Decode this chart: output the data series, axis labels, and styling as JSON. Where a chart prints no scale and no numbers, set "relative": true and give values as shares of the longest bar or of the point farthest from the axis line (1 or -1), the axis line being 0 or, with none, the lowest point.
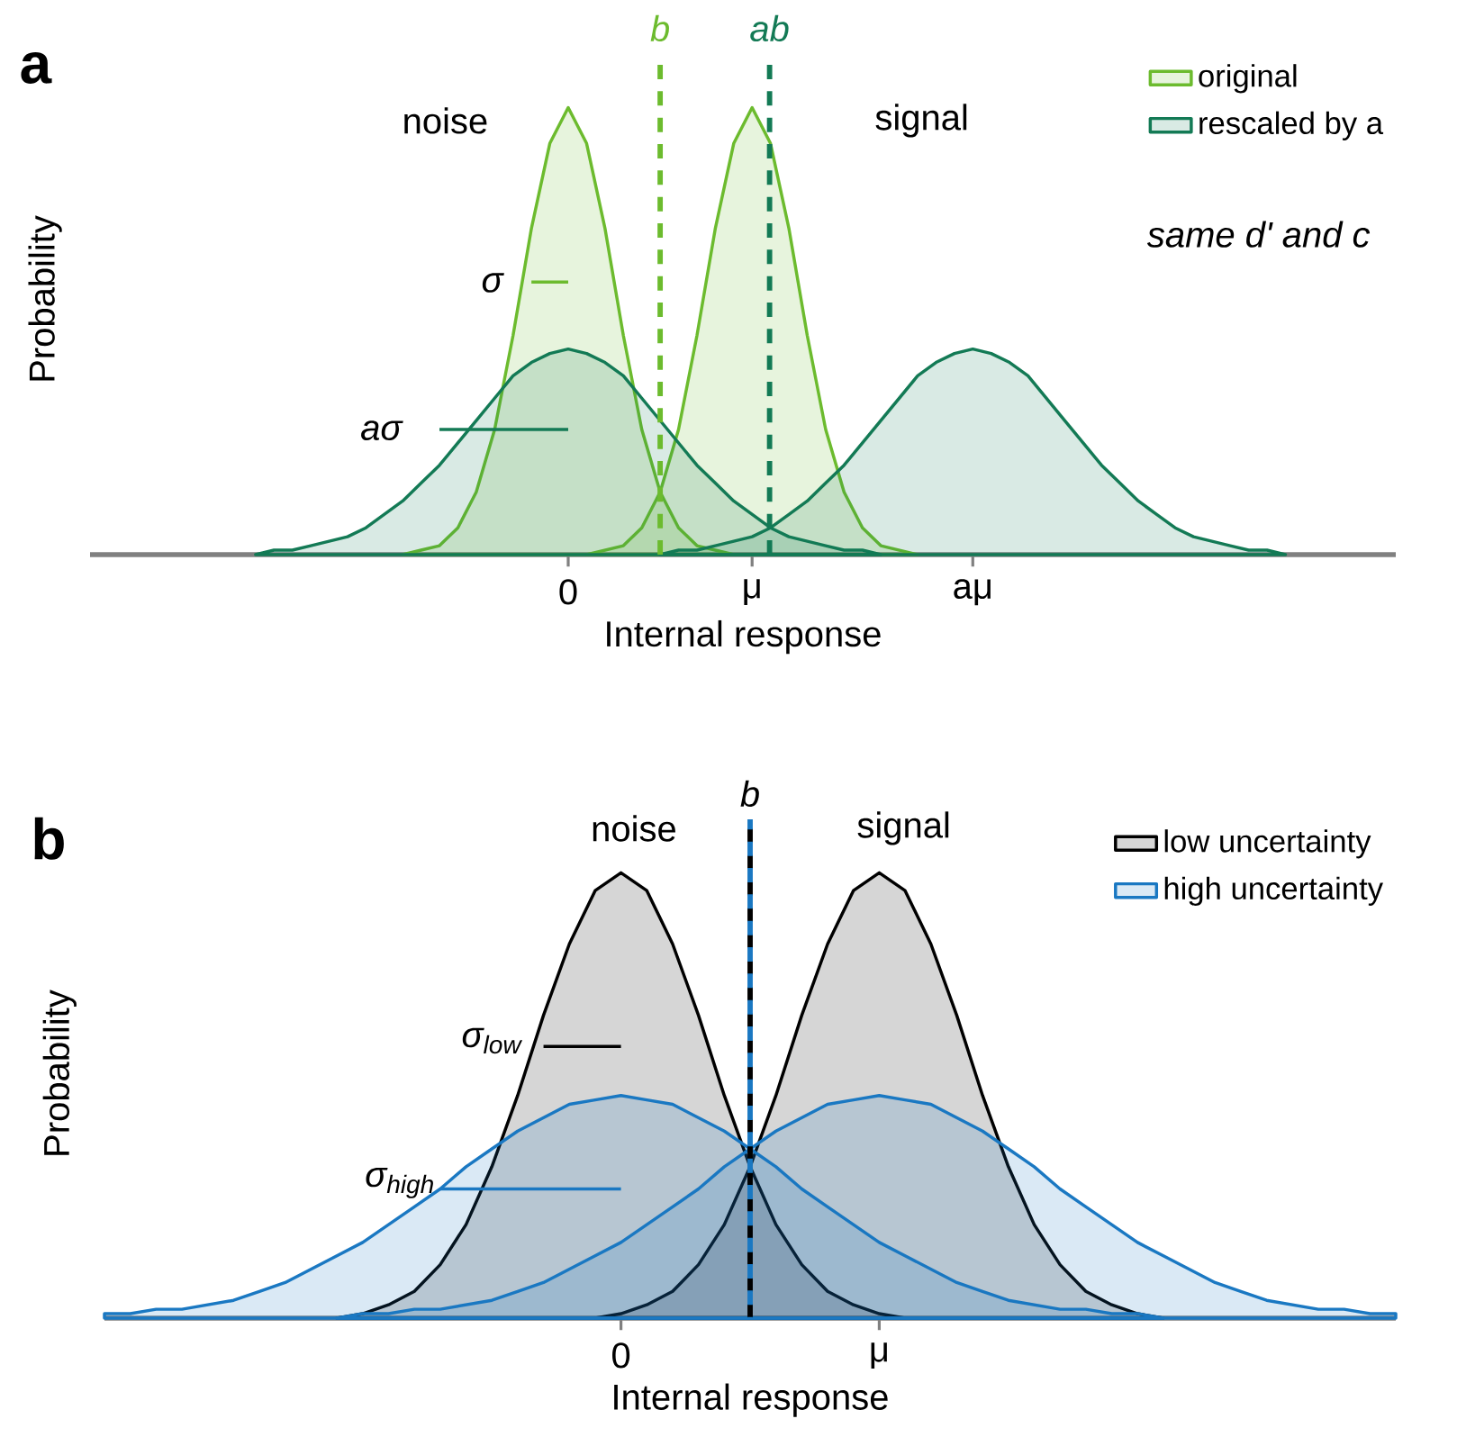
{
  "chart_data": [
    {
      "type": "area",
      "title": "a",
      "relative": true,
      "xlabel": "Internal response",
      "ylabel": "Probability",
      "legend": "top right",
      "categories": [
        null,
        null,
        null,
        null,
        null,
        null,
        null,
        null,
        null,
        null,
        null,
        null,
        null,
        null,
        null,
        null,
        null,
        null,
        null,
        null,
        null,
        null,
        null,
        null,
        null,
        null,
        "0",
        null,
        null,
        null,
        null,
        null,
        null,
        null,
        null,
        null,
        "μ",
        null,
        null,
        null,
        null,
        null,
        null,
        null,
        null,
        null,
        null,
        null,
        "aμ",
        null,
        null,
        null,
        null,
        null,
        null,
        null,
        null,
        null,
        null,
        null,
        null,
        null,
        null,
        null,
        null,
        null,
        null,
        null,
        null,
        null,
        null,
        null
      ],
      "annotations": [
        "noise",
        "signal",
        "σ",
        "aσ",
        "same d' and c",
        "b",
        "ab"
      ],
      "series": [
        {
          "name": "original",
          "color": "#6cbb2e",
          "values": [
            null,
            null,
            null,
            null,
            null,
            null,
            null,
            null,
            null,
            null,
            null,
            null,
            null,
            null,
            null,
            null,
            null,
            0,
            0.01,
            0.02,
            0.06,
            0.14,
            0.28,
            0.49,
            0.73,
            0.92,
            1,
            0.92,
            0.73,
            0.49,
            0.28,
            0.14,
            0.06,
            0.02,
            0.01,
            0,
            null,
            null,
            null,
            null,
            null,
            null,
            null,
            null,
            null,
            null,
            null,
            null,
            null,
            null,
            null,
            null,
            null,
            null,
            null,
            null,
            null,
            null,
            null,
            null,
            null,
            null,
            null,
            null,
            null,
            null,
            null,
            null,
            null,
            null,
            null,
            null
          ]
        },
        {
          "color": "#6cbb2e",
          "values": [
            null,
            null,
            null,
            null,
            null,
            null,
            null,
            null,
            null,
            null,
            null,
            null,
            null,
            null,
            null,
            null,
            null,
            null,
            null,
            null,
            null,
            null,
            null,
            null,
            null,
            null,
            null,
            0,
            0.01,
            0.02,
            0.06,
            0.14,
            0.28,
            0.49,
            0.73,
            0.92,
            1,
            0.92,
            0.73,
            0.49,
            0.28,
            0.14,
            0.06,
            0.02,
            0.01,
            0,
            null,
            null,
            null,
            null,
            null,
            null,
            null,
            null,
            null,
            null,
            null,
            null,
            null,
            null,
            null,
            null,
            null,
            null,
            null,
            null,
            null,
            null,
            null,
            null,
            null,
            null
          ]
        },
        {
          "name": "rescaled by a",
          "color": "#137a55",
          "values": [
            null,
            null,
            null,
            null,
            null,
            null,
            null,
            null,
            null,
            0,
            0.01,
            0.01,
            0.02,
            0.03,
            0.04,
            0.06,
            0.09,
            0.12,
            0.16,
            0.2,
            0.25,
            0.3,
            0.35,
            0.4,
            0.43,
            0.45,
            0.46,
            0.45,
            0.43,
            0.4,
            0.35,
            0.3,
            0.25,
            0.2,
            0.16,
            0.12,
            0.09,
            0.06,
            0.04,
            0.03,
            0.02,
            0.01,
            0.01,
            0,
            null,
            null,
            null,
            null,
            null,
            null,
            null,
            null,
            null,
            null,
            null,
            null,
            null,
            null,
            null,
            null,
            null,
            null,
            null,
            null,
            null,
            null,
            null,
            null,
            null,
            null,
            null,
            null
          ]
        },
        {
          "color": "#137a55",
          "values": [
            null,
            null,
            null,
            null,
            null,
            null,
            null,
            null,
            null,
            null,
            null,
            null,
            null,
            null,
            null,
            null,
            null,
            null,
            null,
            null,
            null,
            null,
            null,
            null,
            null,
            null,
            null,
            null,
            null,
            null,
            null,
            0,
            0.01,
            0.01,
            0.02,
            0.03,
            0.04,
            0.06,
            0.09,
            0.12,
            0.16,
            0.2,
            0.25,
            0.3,
            0.35,
            0.4,
            0.43,
            0.45,
            0.46,
            0.45,
            0.43,
            0.4,
            0.35,
            0.3,
            0.25,
            0.2,
            0.16,
            0.12,
            0.09,
            0.06,
            0.04,
            0.03,
            0.02,
            0.01,
            0.01,
            0,
            null,
            null,
            null,
            null,
            null,
            null
          ]
        },
        {
          "type": "line",
          "color": "#6cbb2e",
          "values": [
            null,
            null,
            null,
            null,
            null,
            null,
            null,
            null,
            null,
            null,
            null,
            null,
            null,
            null,
            null,
            null,
            null,
            null,
            null,
            null,
            null,
            null,
            null,
            null,
            0.61,
            0.61,
            0.61,
            null,
            null,
            null,
            null,
            null,
            null,
            null,
            null,
            null,
            null,
            null,
            null,
            null,
            null,
            null,
            null,
            null,
            null,
            null,
            null,
            null,
            null,
            null,
            null,
            null,
            null,
            null,
            null,
            null,
            null,
            null,
            null,
            null,
            null,
            null,
            null,
            null,
            null,
            null,
            null,
            null,
            null,
            null,
            null,
            null
          ]
        },
        {
          "type": "line",
          "color": "#137a55",
          "values": [
            null,
            null,
            null,
            null,
            null,
            null,
            null,
            null,
            null,
            null,
            null,
            null,
            null,
            null,
            null,
            null,
            null,
            null,
            null,
            0.28,
            0.28,
            0.28,
            0.28,
            0.28,
            0.28,
            0.28,
            0.28,
            null,
            null,
            null,
            null,
            null,
            null,
            null,
            null,
            null,
            null,
            null,
            null,
            null,
            null,
            null,
            null,
            null,
            null,
            null,
            null,
            null,
            null,
            null,
            null,
            null,
            null,
            null,
            null,
            null,
            null,
            null,
            null,
            null,
            null,
            null,
            null,
            null,
            null,
            null,
            null,
            null,
            null,
            null,
            null,
            null
          ]
        }
      ]
    },
    {
      "type": "area",
      "title": "b",
      "relative": true,
      "xlabel": "Internal response",
      "ylabel": "Probability",
      "legend": "top right",
      "categories": [
        null,
        null,
        null,
        null,
        null,
        null,
        null,
        null,
        null,
        null,
        null,
        null,
        null,
        null,
        null,
        null,
        null,
        null,
        null,
        null,
        "0",
        null,
        null,
        null,
        null,
        null,
        null,
        null,
        null,
        null,
        "μ",
        null,
        null,
        null,
        null,
        null,
        null,
        null,
        null,
        null,
        null,
        null,
        null,
        null,
        null,
        null,
        null,
        null,
        null,
        null,
        null
      ],
      "annotations": [
        "noise",
        "signal",
        "σ$_{low}$",
        "σ$_{high}$",
        "b"
      ],
      "series": [
        {
          "name": "low uncertainty",
          "color": "#000000",
          "values": [
            null,
            null,
            null,
            null,
            null,
            null,
            null,
            null,
            null,
            0,
            0.01,
            0.03,
            0.06,
            0.12,
            0.21,
            0.34,
            0.5,
            0.68,
            0.84,
            0.96,
            1,
            0.96,
            0.84,
            0.68,
            0.5,
            0.34,
            0.21,
            0.12,
            0.06,
            0.03,
            0.01,
            0,
            null,
            null,
            null,
            null,
            null,
            null,
            null,
            null,
            null,
            null,
            null,
            null,
            null,
            null,
            null,
            null,
            null,
            null,
            null
          ]
        },
        {
          "color": "#000000",
          "values": [
            null,
            null,
            null,
            null,
            null,
            null,
            null,
            null,
            null,
            null,
            null,
            null,
            null,
            null,
            null,
            null,
            null,
            null,
            null,
            0,
            0.01,
            0.03,
            0.06,
            0.12,
            0.21,
            0.34,
            0.5,
            0.68,
            0.84,
            0.96,
            1,
            0.96,
            0.84,
            0.68,
            0.5,
            0.34,
            0.21,
            0.12,
            0.06,
            0.03,
            0.01,
            0,
            null,
            null,
            null,
            null,
            null,
            null,
            null,
            null,
            null
          ]
        },
        {
          "name": "high uncertainty",
          "color": "#1a78c2",
          "values": [
            0.01,
            0.01,
            0.02,
            0.02,
            0.03,
            0.04,
            0.06,
            0.08,
            0.11,
            0.14,
            0.17,
            0.21,
            0.25,
            0.29,
            0.34,
            0.38,
            0.42,
            0.45,
            0.48,
            0.49,
            0.5,
            0.49,
            0.48,
            0.45,
            0.42,
            0.38,
            0.34,
            0.29,
            0.25,
            0.21,
            0.17,
            0.14,
            0.11,
            0.08,
            0.06,
            0.04,
            0.03,
            0.02,
            0.02,
            0.01,
            0.01,
            0,
            null,
            null,
            null,
            null,
            null,
            null,
            null,
            null,
            null
          ]
        },
        {
          "color": "#1a78c2",
          "values": [
            null,
            null,
            null,
            null,
            null,
            null,
            null,
            null,
            null,
            0,
            0.01,
            0.01,
            0.02,
            0.02,
            0.03,
            0.04,
            0.06,
            0.08,
            0.11,
            0.14,
            0.17,
            0.21,
            0.25,
            0.29,
            0.34,
            0.38,
            0.42,
            0.45,
            0.48,
            0.49,
            0.5,
            0.49,
            0.48,
            0.45,
            0.42,
            0.38,
            0.34,
            0.29,
            0.25,
            0.21,
            0.17,
            0.14,
            0.11,
            0.08,
            0.06,
            0.04,
            0.03,
            0.02,
            0.02,
            0.01,
            0.01
          ]
        },
        {
          "type": "line",
          "color": "#000000",
          "values": [
            null,
            null,
            null,
            null,
            null,
            null,
            null,
            null,
            null,
            null,
            null,
            null,
            null,
            null,
            null,
            null,
            null,
            0.61,
            0.61,
            0.61,
            0.61,
            null,
            null,
            null,
            null,
            null,
            null,
            null,
            null,
            null,
            null,
            null,
            null,
            null,
            null,
            null,
            null,
            null,
            null,
            null,
            null,
            null,
            null,
            null,
            null,
            null,
            null,
            null,
            null,
            null,
            null
          ]
        },
        {
          "type": "line",
          "color": "#1a78c2",
          "values": [
            null,
            null,
            null,
            null,
            null,
            null,
            null,
            null,
            null,
            null,
            null,
            null,
            null,
            0.29,
            0.29,
            0.29,
            0.29,
            0.29,
            0.29,
            0.29,
            0.29,
            null,
            null,
            null,
            null,
            null,
            null,
            null,
            null,
            null,
            null,
            null,
            null,
            null,
            null,
            null,
            null,
            null,
            null,
            null,
            null,
            null,
            null,
            null,
            null,
            null,
            null,
            null,
            null,
            null,
            null
          ]
        }
      ]
    }
  ]
}
